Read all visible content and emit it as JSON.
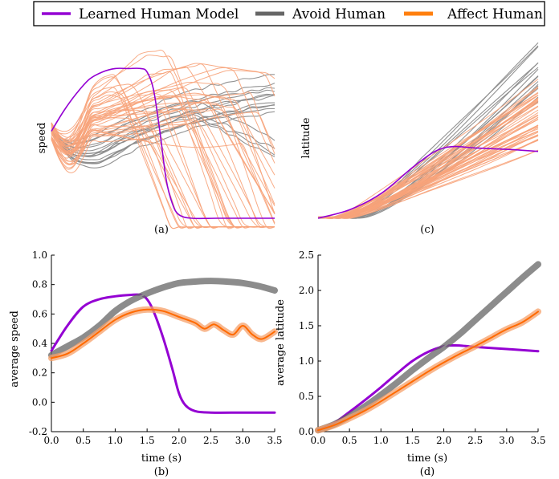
{
  "legend": [
    {
      "label": "Learned Human Model",
      "color": "#9400d3"
    },
    {
      "label": "Avoid Human",
      "color": "#666666"
    },
    {
      "label": "Affect Human",
      "color": "#ff7f0e"
    }
  ],
  "colors": {
    "learned": "#9400d3",
    "avoid_band": "#666666",
    "avoid_line": "#8c8c8c",
    "affect_band": "#f5a06a",
    "affect_line": "#ff6a00",
    "traj_avoid": "#8c8c8c",
    "traj_affect": "#f7a37a"
  },
  "panels": {
    "a": {
      "caption": "(a)",
      "ylabel": "speed"
    },
    "c": {
      "caption": "(c)",
      "ylabel": "latitude"
    },
    "b": {
      "caption": "(b)",
      "ylabel": "average speed",
      "xlabel": "time (s)"
    },
    "d": {
      "caption": "(d)",
      "ylabel": "average latitude",
      "xlabel": "time (s)"
    }
  },
  "chart_data": [
    {
      "type": "line",
      "panel": "a",
      "ylabel": "speed",
      "axes_visible": false,
      "note_series": [
        {
          "name": "Learned Human Model",
          "x": [
            0.0,
            0.2,
            0.4,
            0.6,
            0.8,
            1.0,
            1.2,
            1.4,
            1.5,
            1.6,
            1.7,
            1.8,
            1.9,
            2.0,
            2.2,
            2.6,
            3.0,
            3.5
          ],
          "y": [
            0.5,
            0.62,
            0.72,
            0.8,
            0.84,
            0.86,
            0.86,
            0.86,
            0.84,
            0.74,
            0.5,
            0.22,
            0.08,
            0.02,
            0.0,
            0.0,
            0.0,
            0.0
          ]
        }
      ]
    },
    {
      "type": "line",
      "panel": "c",
      "ylabel": "latitude",
      "axes_visible": false,
      "note_series": [
        {
          "name": "Learned Human Model",
          "x": [
            0.0,
            0.5,
            1.0,
            1.5,
            1.8,
            2.0,
            2.2,
            2.5,
            3.0,
            3.5
          ],
          "y": [
            0.0,
            0.12,
            0.35,
            0.72,
            0.92,
            1.0,
            1.02,
            1.0,
            0.98,
            0.95
          ]
        }
      ]
    },
    {
      "type": "line",
      "panel": "b",
      "xlabel": "time (s)",
      "ylabel": "average speed",
      "xlim": [
        0.0,
        3.5
      ],
      "ylim": [
        -0.2,
        1.0
      ],
      "xticks": [
        0.0,
        0.5,
        1.0,
        1.5,
        2.0,
        2.5,
        3.0,
        3.5
      ],
      "yticks": [
        -0.2,
        0.0,
        0.2,
        0.4,
        0.6,
        0.8,
        1.0
      ],
      "series": [
        {
          "name": "Learned Human Model",
          "x": [
            0.0,
            0.25,
            0.5,
            0.75,
            1.0,
            1.25,
            1.4,
            1.5,
            1.6,
            1.75,
            1.9,
            2.0,
            2.1,
            2.25,
            2.5,
            3.0,
            3.5
          ],
          "y": [
            0.35,
            0.52,
            0.65,
            0.7,
            0.72,
            0.73,
            0.73,
            0.7,
            0.62,
            0.44,
            0.22,
            0.06,
            -0.02,
            -0.06,
            -0.07,
            -0.07,
            -0.07
          ]
        },
        {
          "name": "Avoid Human",
          "x": [
            0.0,
            0.25,
            0.5,
            0.75,
            1.0,
            1.25,
            1.5,
            1.75,
            2.0,
            2.25,
            2.5,
            2.75,
            3.0,
            3.25,
            3.5
          ],
          "y": [
            0.32,
            0.38,
            0.44,
            0.52,
            0.62,
            0.69,
            0.74,
            0.78,
            0.81,
            0.82,
            0.825,
            0.82,
            0.81,
            0.79,
            0.76
          ]
        },
        {
          "name": "Affect Human",
          "x": [
            0.0,
            0.25,
            0.5,
            0.75,
            1.0,
            1.25,
            1.5,
            1.75,
            2.0,
            2.25,
            2.4,
            2.55,
            2.7,
            2.85,
            3.0,
            3.15,
            3.3,
            3.5
          ],
          "y": [
            0.3,
            0.33,
            0.4,
            0.48,
            0.56,
            0.61,
            0.63,
            0.62,
            0.58,
            0.54,
            0.5,
            0.53,
            0.49,
            0.46,
            0.52,
            0.46,
            0.43,
            0.48
          ]
        }
      ]
    },
    {
      "type": "line",
      "panel": "d",
      "xlabel": "time (s)",
      "ylabel": "average latitude",
      "xlim": [
        0.0,
        3.5
      ],
      "ylim": [
        0.0,
        2.5
      ],
      "xticks": [
        0.0,
        0.5,
        1.0,
        1.5,
        2.0,
        2.5,
        3.0,
        3.5
      ],
      "yticks": [
        0.0,
        0.5,
        1.0,
        1.5,
        2.0,
        2.5
      ],
      "series": [
        {
          "name": "Learned Human Model",
          "x": [
            0.0,
            0.25,
            0.5,
            0.75,
            1.0,
            1.25,
            1.5,
            1.75,
            2.0,
            2.1,
            2.25,
            2.5,
            3.0,
            3.5
          ],
          "y": [
            0.02,
            0.12,
            0.28,
            0.45,
            0.63,
            0.82,
            1.0,
            1.13,
            1.21,
            1.22,
            1.22,
            1.2,
            1.17,
            1.14
          ]
        },
        {
          "name": "Avoid Human",
          "x": [
            0.0,
            0.25,
            0.5,
            0.75,
            1.0,
            1.25,
            1.5,
            1.75,
            2.0,
            2.25,
            2.5,
            2.75,
            3.0,
            3.25,
            3.5
          ],
          "y": [
            0.02,
            0.1,
            0.22,
            0.36,
            0.52,
            0.69,
            0.87,
            1.04,
            1.2,
            1.38,
            1.58,
            1.78,
            1.98,
            2.18,
            2.37
          ]
        },
        {
          "name": "Affect Human",
          "x": [
            0.0,
            0.25,
            0.5,
            0.75,
            1.0,
            1.25,
            1.5,
            1.75,
            2.0,
            2.25,
            2.5,
            2.75,
            3.0,
            3.25,
            3.5
          ],
          "y": [
            0.02,
            0.09,
            0.19,
            0.3,
            0.43,
            0.57,
            0.71,
            0.85,
            0.98,
            1.1,
            1.21,
            1.33,
            1.45,
            1.55,
            1.7
          ]
        }
      ]
    }
  ]
}
